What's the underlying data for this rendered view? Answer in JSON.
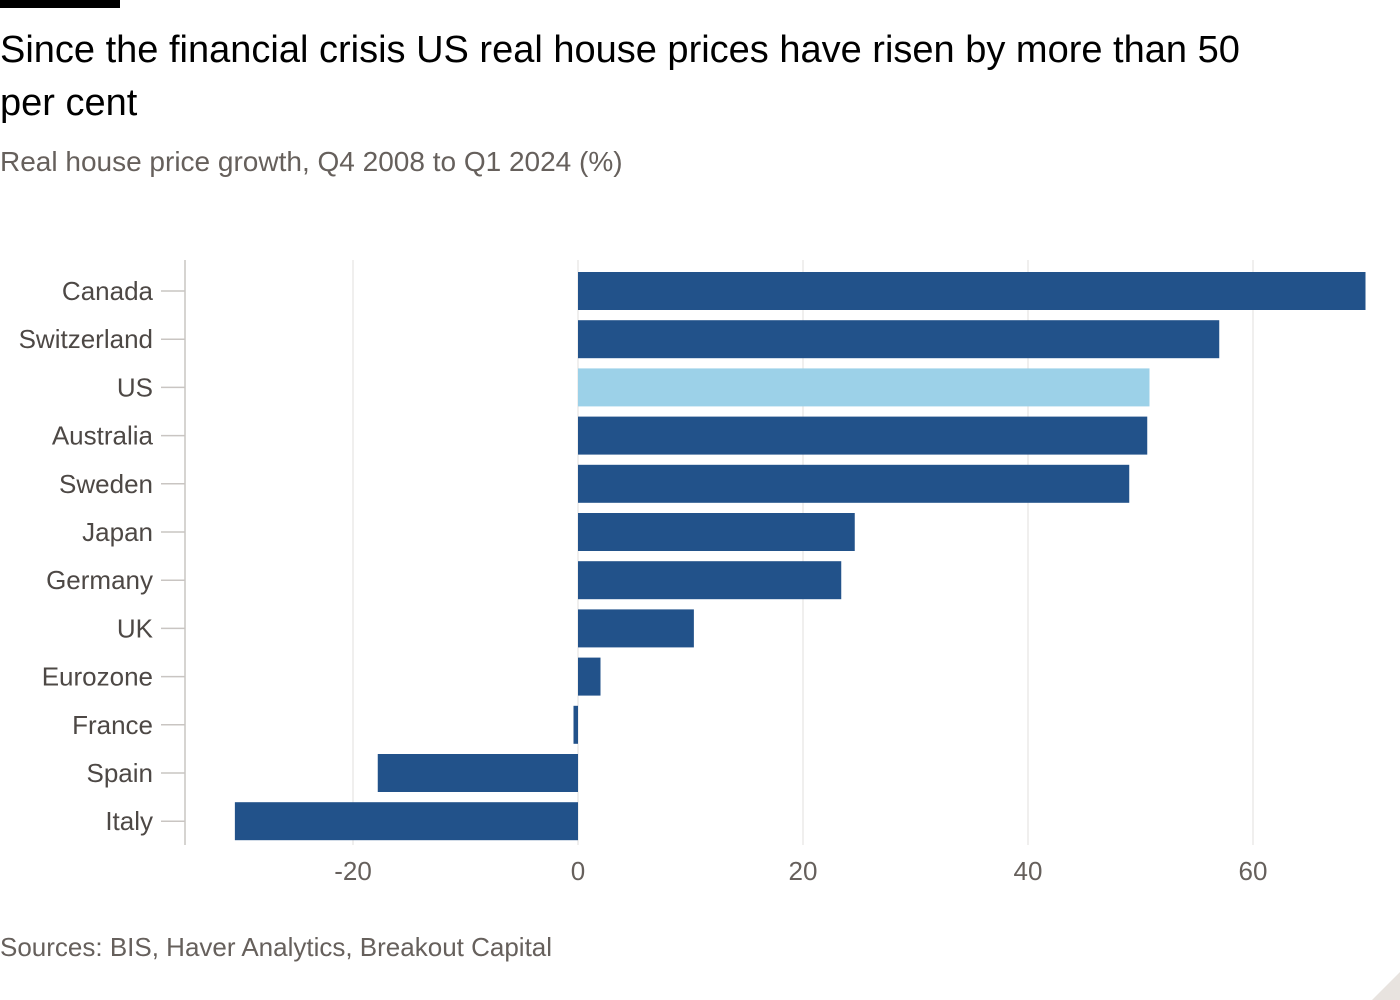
{
  "header": {
    "title": "Since the financial crisis US real house prices have risen by more than 50 per cent",
    "subtitle": "Real house price growth, Q4 2008 to Q1 2024 (%)"
  },
  "footer": {
    "source": "Sources: BIS, Haver Analytics, Breakout Capital"
  },
  "colors": {
    "bar_default": "#22528a",
    "bar_highlight": "#9cd1e8",
    "gridline": "#e2dfdc",
    "axis": "#c9c5c2"
  },
  "chart_data": {
    "type": "bar",
    "orientation": "horizontal",
    "title": "Since the financial crisis US real house prices have risen by more than 50 per cent",
    "subtitle": "Real house price growth, Q4 2008 to Q1 2024 (%)",
    "xlabel": "",
    "ylabel": "",
    "categories": [
      "Canada",
      "Switzerland",
      "US",
      "Australia",
      "Sweden",
      "Japan",
      "Germany",
      "UK",
      "Eurozone",
      "France",
      "Spain",
      "Italy"
    ],
    "values": [
      70.0,
      57.0,
      50.8,
      50.6,
      49.0,
      24.6,
      23.4,
      10.3,
      2.0,
      -0.4,
      -17.8,
      -30.5
    ],
    "highlight": [
      "US"
    ],
    "xlim": [
      -35,
      70
    ],
    "xticks": [
      -20,
      0,
      20,
      40,
      60
    ],
    "xtick_labels": [
      "-20",
      "0",
      "20",
      "40",
      "60"
    ],
    "grid": true,
    "legend": "none",
    "source": "Sources: BIS, Haver Analytics, Breakout Capital"
  }
}
